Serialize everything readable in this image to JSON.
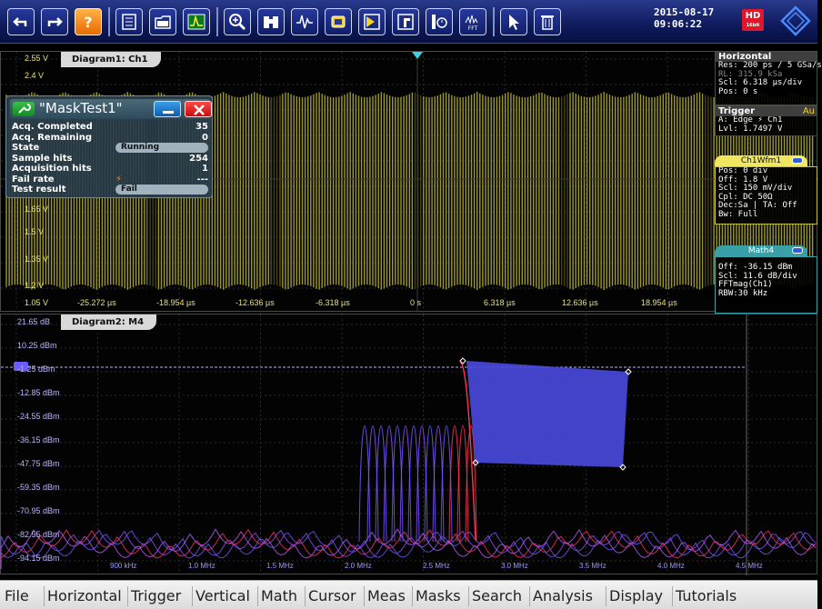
{
  "datetime": {
    "date": "2015-08-17",
    "time": "09:06:22"
  },
  "hd_badge": {
    "label": "HD",
    "sub": "16bit"
  },
  "toolbar": {
    "icons": [
      "undo-icon",
      "redo-icon",
      "help-icon",
      "signal-bar-icon",
      "file-open-icon",
      "autoset-icon",
      "zoom-icon",
      "binoculars-icon",
      "histogram-icon",
      "chip-icon",
      "mask-icon",
      "cursor-pointer-icon",
      "history-icon",
      "fft-icon",
      "select-icon",
      "delete-icon"
    ]
  },
  "diagram1": {
    "tab": "Diagram1: Ch1",
    "y_labels": [
      "2.55 V",
      "2.4 V",
      "1.65 V",
      "1.5 V",
      "1.35 V",
      "1.2 V",
      "1.05 V"
    ],
    "x_labels": [
      "-25.272 µs",
      "-18.954 µs",
      "-12.636 µs",
      "-6.318 µs",
      "0 s",
      "6.318 µs",
      "12.636 µs",
      "18.954 µs"
    ]
  },
  "diagram2": {
    "tab": "Diagram2: M4",
    "y_labels": [
      "21.65 dB",
      "10.25 dBm",
      "-1.25 dBm",
      "-12.85 dBm",
      "-24.55 dBm",
      "-36.15 dBm",
      "-47.75 dBm",
      "-59.35 dBm",
      "-70.95 dBm",
      "-82.55 dBm",
      "-94.15 dBm"
    ],
    "x_labels": [
      "900 kHz",
      "1.0 MHz",
      "1.5 MHz",
      "2.0 MHz",
      "2.5 MHz",
      "3.0 MHz",
      "3.5 MHz",
      "4.0 MHz",
      "4.5 MHz"
    ]
  },
  "mask_test": {
    "title": "\"MaskTest1\"",
    "rows": [
      {
        "label": "Acq. Completed",
        "value": "35"
      },
      {
        "label": "Acq. Remaining",
        "value": "0"
      },
      {
        "label": "State",
        "value": "Running"
      },
      {
        "label": "Sample hits",
        "value": "254"
      },
      {
        "label": "Acquisition hits",
        "value": "1"
      },
      {
        "label": "Fail rate",
        "value": "---"
      },
      {
        "label": "Test result",
        "value": "Fail"
      }
    ],
    "minimize_label": "—",
    "close_label": "✕"
  },
  "horizontal": {
    "title": "Horizontal",
    "res": "Res: 200 ps / 5 GSa/s",
    "rl": "RL:  315.9 kSa",
    "scl": "Scl: 6.318 µs/div",
    "pos": "Pos: 0 s"
  },
  "trigger": {
    "title": "Trigger",
    "mode": "Au",
    "a": "A:  Edge ⚡ Ch1",
    "lvl": "Lvl:  1.7497 V"
  },
  "ch1wfm1": {
    "tab": "Ch1Wfm1",
    "lines": [
      "Pos: 0 div",
      "Off: 1.8 V",
      "Scl: 150 mV/div",
      "Cpl: DC 50Ω",
      "Dec:Sa | TA: Off",
      "Bw: Full"
    ]
  },
  "math4": {
    "tab": "Math4",
    "lines": [
      "Off:  -36.15 dBm",
      "Scl:  11.6 dB/div",
      "FFTmag(Ch1)",
      "RBW:30 kHz"
    ]
  },
  "menu": [
    "File",
    "Horizontal",
    "Trigger",
    "Vertical",
    "Math",
    "Cursor",
    "Meas",
    "Masks",
    "Search",
    "Analysis",
    "Display",
    "Tutorials"
  ],
  "colors": {
    "ch1": "#c8c23a",
    "spectrum_blue": "#6a5cff",
    "spectrum_red": "#ff3355",
    "mask_fill": "#4a4ae0",
    "toolbar": "#0e1a5c"
  }
}
